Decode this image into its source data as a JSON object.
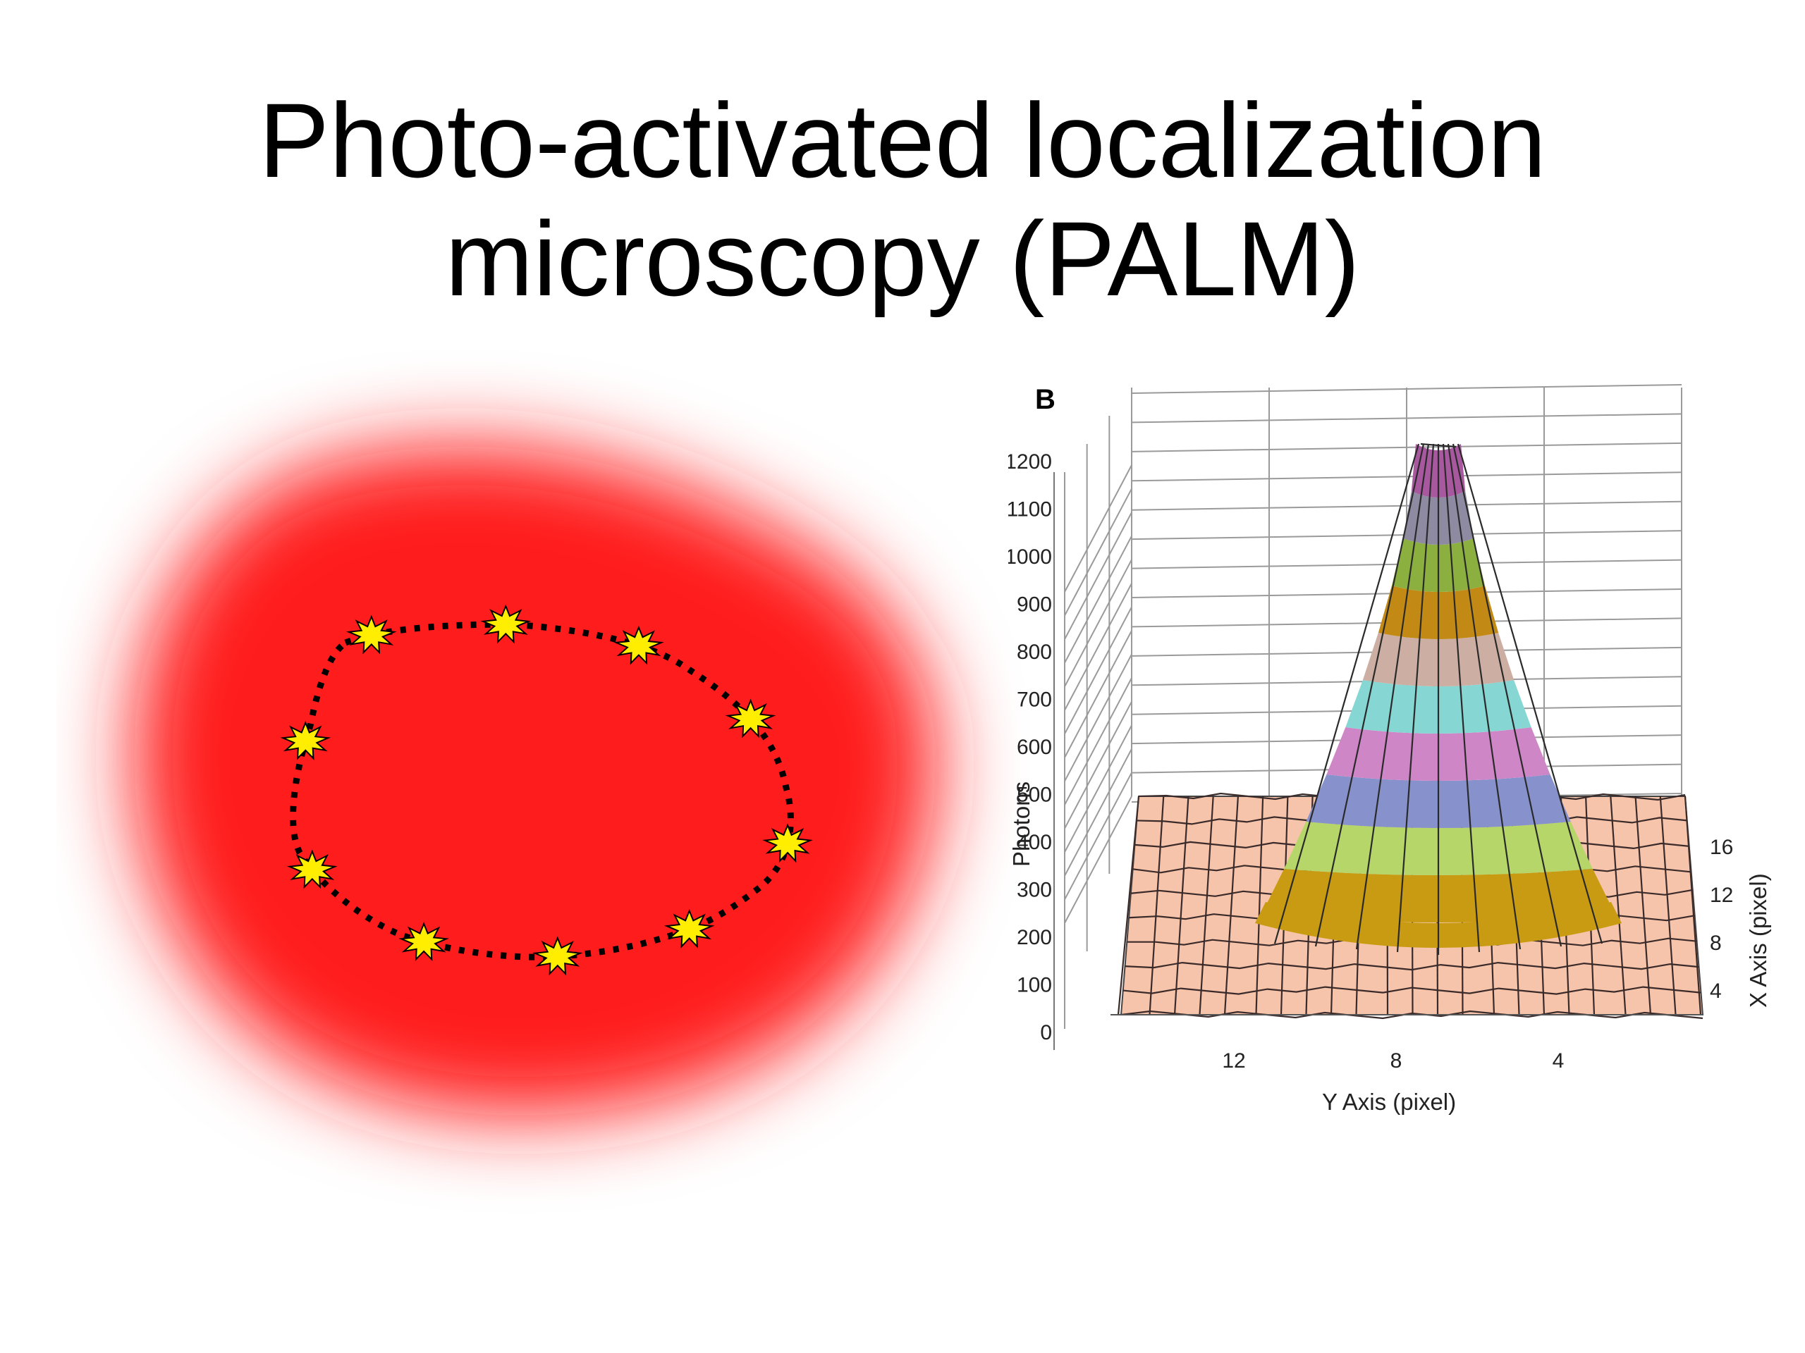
{
  "title": {
    "line1": "Photo-activated localization",
    "line2": "microscopy (PALM)"
  },
  "diagram": {
    "cell_color": "#ff1a1a",
    "fluorophore_color": "#ffee00",
    "fluorophore_count": 10,
    "outline_style": "dotted black ring"
  },
  "figure": {
    "panel_label": "B",
    "z_axis": {
      "label": "Photons",
      "ticks": [
        "0",
        "100",
        "200",
        "300",
        "400",
        "500",
        "600",
        "700",
        "800",
        "900",
        "1000",
        "1100",
        "1200"
      ]
    },
    "y_axis": {
      "label": "Y Axis (pixel)",
      "ticks": [
        "12",
        "8",
        "4"
      ]
    },
    "x_axis": {
      "label": "X Axis (pixel)",
      "ticks": [
        "16",
        "12",
        "8",
        "4"
      ]
    },
    "base_color": "#f6c4aa",
    "band_colors": [
      "#c89b12",
      "#b6d66a",
      "#8791cc",
      "#cf86c6",
      "#86d6d3",
      "#cdaea3",
      "#c28a15",
      "#8cb040",
      "#8e8aa2",
      "#a8589e"
    ]
  }
}
